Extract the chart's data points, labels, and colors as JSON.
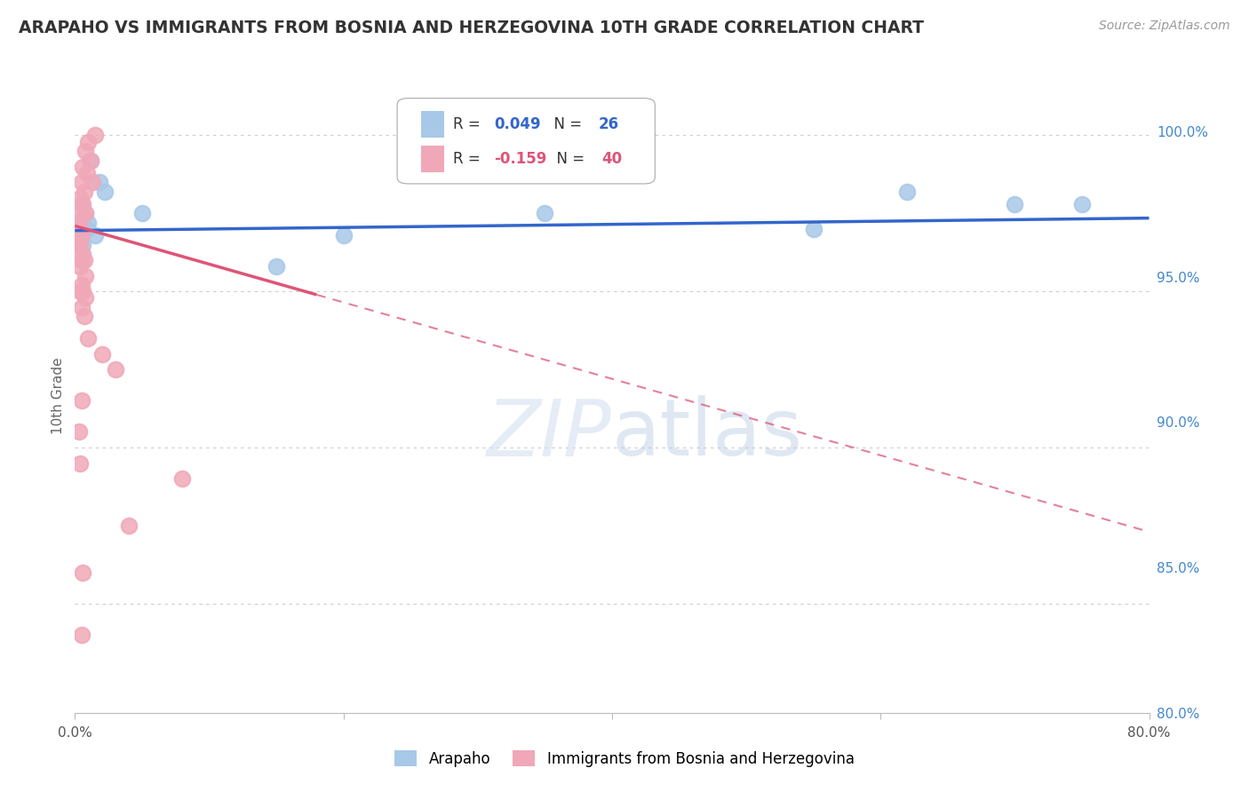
{
  "title": "ARAPAHO VS IMMIGRANTS FROM BOSNIA AND HERZEGOVINA 10TH GRADE CORRELATION CHART",
  "source": "Source: ZipAtlas.com",
  "ylabel": "10th Grade",
  "right_yticks": [
    80.0,
    85.0,
    90.0,
    95.0,
    100.0
  ],
  "xmin": 0.0,
  "xmax": 80.0,
  "ymin": 81.5,
  "ymax": 101.8,
  "blue_R": 0.049,
  "blue_N": 26,
  "pink_R": -0.159,
  "pink_N": 40,
  "blue_color": "#a8c8e8",
  "pink_color": "#f0a8b8",
  "blue_edge_color": "#88aad8",
  "pink_edge_color": "#e08090",
  "blue_line_color": "#3366cc",
  "pink_line_color": "#dd5577",
  "legend_label_blue": "Arapaho",
  "legend_label_pink": "Immigrants from Bosnia and Herzegovina",
  "watermark_ZIP": "ZIP",
  "watermark_atlas": "atlas",
  "blue_x": [
    1.2,
    1.8,
    2.2,
    0.5,
    0.8,
    0.4,
    0.6,
    0.9,
    1.0,
    0.3,
    0.4,
    0.6,
    1.5,
    0.3,
    0.2,
    0.5,
    0.8,
    0.3,
    5.0,
    62.0,
    70.0,
    75.0,
    55.0,
    35.0,
    20.0,
    15.0
  ],
  "blue_y": [
    99.2,
    98.5,
    98.2,
    97.8,
    97.5,
    97.2,
    97.0,
    97.0,
    97.2,
    97.0,
    96.8,
    96.5,
    96.8,
    97.0,
    96.8,
    97.2,
    97.0,
    97.0,
    97.5,
    98.2,
    97.8,
    97.8,
    97.0,
    97.5,
    96.8,
    95.8
  ],
  "pink_x": [
    1.5,
    1.0,
    0.8,
    1.2,
    0.6,
    0.9,
    1.3,
    0.5,
    0.7,
    0.4,
    0.6,
    0.8,
    0.5,
    0.3,
    0.4,
    0.3,
    0.5,
    0.4,
    0.3,
    0.6,
    0.5,
    0.7,
    0.4,
    0.8,
    0.5,
    0.6,
    0.4,
    0.8,
    0.5,
    0.7,
    1.0,
    2.0,
    3.0,
    0.5,
    0.3,
    0.4,
    8.0,
    4.0,
    0.6,
    0.5
  ],
  "pink_y": [
    100.0,
    99.8,
    99.5,
    99.2,
    99.0,
    98.8,
    98.5,
    98.5,
    98.2,
    98.0,
    97.8,
    97.5,
    97.5,
    97.2,
    97.0,
    97.0,
    96.8,
    96.5,
    96.5,
    96.2,
    96.0,
    96.0,
    95.8,
    95.5,
    95.2,
    95.0,
    95.0,
    94.8,
    94.5,
    94.2,
    93.5,
    93.0,
    92.5,
    91.5,
    90.5,
    89.5,
    89.0,
    87.5,
    86.0,
    84.0
  ],
  "pink_solid_end_x": 18.0,
  "blue_line_y0": 96.95,
  "blue_line_y1": 97.35,
  "pink_line_y0": 97.1,
  "pink_line_y1": 87.3
}
